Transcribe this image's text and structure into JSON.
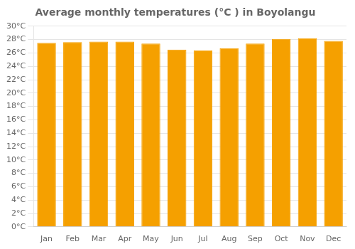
{
  "chart_data": {
    "type": "bar",
    "title": "Average monthly temperatures (°C ) in Boyolangu",
    "categories": [
      "Jan",
      "Feb",
      "Mar",
      "Apr",
      "May",
      "Jun",
      "Jul",
      "Aug",
      "Sep",
      "Oct",
      "Nov",
      "Dec"
    ],
    "values": [
      27.5,
      27.6,
      27.7,
      27.7,
      27.4,
      26.5,
      26.4,
      26.7,
      27.4,
      28.1,
      28.2,
      27.8
    ],
    "color": "#F5A000",
    "ylim": [
      0,
      30
    ],
    "yticks": [
      {
        "value": 0,
        "label": "0°C"
      },
      {
        "value": 2,
        "label": "2°C"
      },
      {
        "value": 4,
        "label": "4°C"
      },
      {
        "value": 6,
        "label": "6°C"
      },
      {
        "value": 8,
        "label": "8°C"
      },
      {
        "value": 10,
        "label": "10°C"
      },
      {
        "value": 12,
        "label": "12°C"
      },
      {
        "value": 14,
        "label": "14°C"
      },
      {
        "value": 16,
        "label": "16°C"
      },
      {
        "value": 18,
        "label": "18°C"
      },
      {
        "value": 20,
        "label": "20°C"
      },
      {
        "value": 22,
        "label": "22°C"
      },
      {
        "value": 24,
        "label": "24°C"
      },
      {
        "value": 26,
        "label": "26°C"
      },
      {
        "value": 28,
        "label": "28°C"
      },
      {
        "value": 30,
        "label": "30°C"
      }
    ],
    "grid": true
  }
}
